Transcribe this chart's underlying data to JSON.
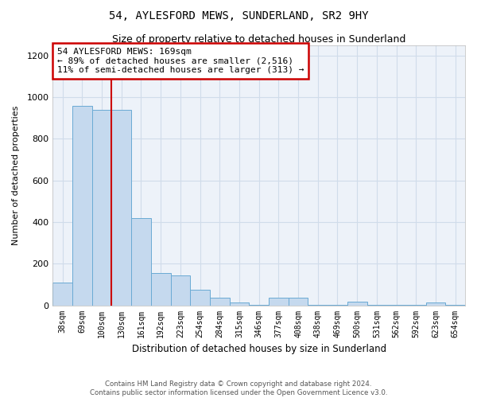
{
  "title": "54, AYLESFORD MEWS, SUNDERLAND, SR2 9HY",
  "subtitle": "Size of property relative to detached houses in Sunderland",
  "xlabel": "Distribution of detached houses by size in Sunderland",
  "ylabel": "Number of detached properties",
  "footer1": "Contains HM Land Registry data © Crown copyright and database right 2024.",
  "footer2": "Contains public sector information licensed under the Open Government Licence v3.0.",
  "categories": [
    "38sqm",
    "69sqm",
    "100sqm",
    "130sqm",
    "161sqm",
    "192sqm",
    "223sqm",
    "254sqm",
    "284sqm",
    "315sqm",
    "346sqm",
    "377sqm",
    "408sqm",
    "438sqm",
    "469sqm",
    "500sqm",
    "531sqm",
    "562sqm",
    "592sqm",
    "623sqm",
    "654sqm"
  ],
  "values": [
    110,
    960,
    940,
    940,
    420,
    155,
    145,
    75,
    38,
    12,
    3,
    38,
    38,
    3,
    3,
    18,
    3,
    3,
    3,
    12,
    3
  ],
  "bar_color": "#c5d9ee",
  "bar_edge_color": "#6aaad4",
  "grid_color": "#d0dcea",
  "bg_color": "#edf2f9",
  "vline_x": 2.5,
  "vline_color": "#cc0000",
  "annotation_text": "54 AYLESFORD MEWS: 169sqm\n← 89% of detached houses are smaller (2,516)\n11% of semi-detached houses are larger (313) →",
  "annotation_box_color": "#cc0000",
  "ylim": [
    0,
    1250
  ],
  "yticks": [
    0,
    200,
    400,
    600,
    800,
    1000,
    1200
  ]
}
